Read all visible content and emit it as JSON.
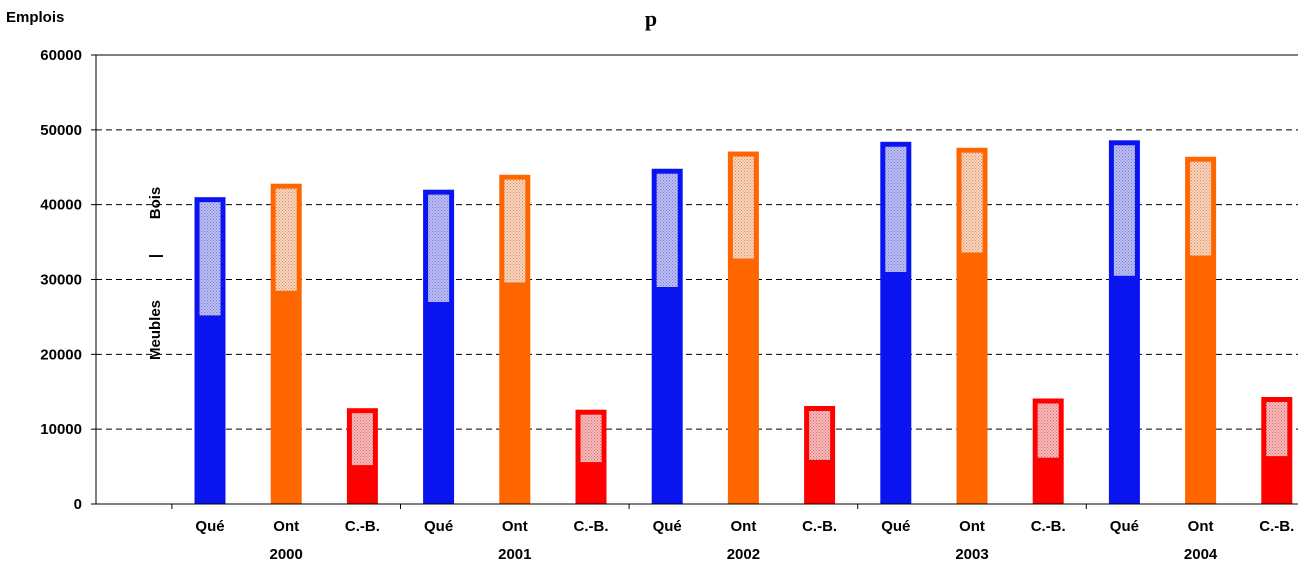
{
  "chart_data": {
    "type": "bar",
    "title": "p",
    "ylabel": "Emplois",
    "ylim": [
      0,
      60000
    ],
    "yticks": [
      "0",
      "10000",
      "20000",
      "30000",
      "40000",
      "50000",
      "60000"
    ],
    "grid": "horizontal-dashed",
    "inner_labels": {
      "lower": "Meubles",
      "separator": "|",
      "upper": "Bois"
    },
    "colors": {
      "Qué": "#0a14f0",
      "Ont": "#ff6600",
      "C.-B.": "#ff0000"
    },
    "groups": [
      {
        "year": "2000",
        "bars": [
          {
            "label": "Qué",
            "meubles": 25200,
            "bois": 15800,
            "total": 41000
          },
          {
            "label": "Ont",
            "meubles": 28500,
            "bois": 14300,
            "total": 42800
          },
          {
            "label": "C.-B.",
            "meubles": 5200,
            "bois": 7600,
            "total": 12800
          }
        ]
      },
      {
        "year": "2001",
        "bars": [
          {
            "label": "Qué",
            "meubles": 27000,
            "bois": 15000,
            "total": 42000
          },
          {
            "label": "Ont",
            "meubles": 29600,
            "bois": 14400,
            "total": 44000
          },
          {
            "label": "C.-B.",
            "meubles": 5600,
            "bois": 7000,
            "total": 12600
          }
        ]
      },
      {
        "year": "2002",
        "bars": [
          {
            "label": "Qué",
            "meubles": 29000,
            "bois": 15800,
            "total": 44800
          },
          {
            "label": "Ont",
            "meubles": 32800,
            "bois": 14300,
            "total": 47100
          },
          {
            "label": "C.-B.",
            "meubles": 5900,
            "bois": 7200,
            "total": 13100
          }
        ]
      },
      {
        "year": "2003",
        "bars": [
          {
            "label": "Qué",
            "meubles": 31000,
            "bois": 17400,
            "total": 48400
          },
          {
            "label": "Ont",
            "meubles": 33600,
            "bois": 14000,
            "total": 47600
          },
          {
            "label": "C.-B.",
            "meubles": 6200,
            "bois": 7900,
            "total": 14100
          }
        ]
      },
      {
        "year": "2004",
        "bars": [
          {
            "label": "Qué",
            "meubles": 30500,
            "bois": 18100,
            "total": 48600
          },
          {
            "label": "Ont",
            "meubles": 33200,
            "bois": 13200,
            "total": 46400
          },
          {
            "label": "C.-B.",
            "meubles": 6400,
            "bois": 7900,
            "total": 14300
          }
        ]
      }
    ]
  }
}
